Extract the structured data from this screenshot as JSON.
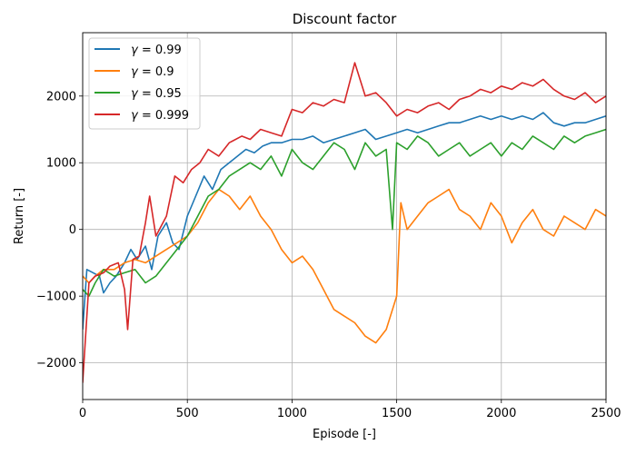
{
  "chart_data": {
    "type": "line",
    "title": "Discount factor",
    "xlabel": "Episode [-]",
    "ylabel": "Return [-]",
    "xlim": [
      0,
      2500
    ],
    "ylim": [
      -2550,
      2950
    ],
    "xticks": [
      0,
      500,
      1000,
      1500,
      2000,
      2500
    ],
    "yticks": [
      -2000,
      -1000,
      0,
      1000,
      2000
    ],
    "xtick_labels": [
      "0",
      "500",
      "1000",
      "1500",
      "2000",
      "2500"
    ],
    "ytick_labels": [
      "−2000",
      "−1000",
      "0",
      "1000",
      "2000"
    ],
    "grid": true,
    "legend_position": "top-left",
    "series": [
      {
        "name": "γ = 0.99",
        "legend_symbol": "γ",
        "legend_value": " = 0.99",
        "color": "#1f77b4",
        "x": [
          0,
          20,
          50,
          80,
          100,
          130,
          160,
          200,
          230,
          260,
          300,
          330,
          360,
          400,
          430,
          460,
          500,
          540,
          580,
          620,
          660,
          700,
          740,
          780,
          820,
          860,
          900,
          950,
          1000,
          1050,
          1100,
          1150,
          1200,
          1250,
          1300,
          1350,
          1400,
          1450,
          1500,
          1550,
          1600,
          1650,
          1700,
          1750,
          1800,
          1850,
          1900,
          1950,
          2000,
          2050,
          2100,
          2150,
          2200,
          2250,
          2300,
          2350,
          2400,
          2450,
          2500
        ],
        "y": [
          -1500,
          -600,
          -650,
          -700,
          -950,
          -800,
          -700,
          -500,
          -300,
          -450,
          -250,
          -600,
          -100,
          100,
          -200,
          -300,
          200,
          500,
          800,
          600,
          900,
          1000,
          1100,
          1200,
          1150,
          1250,
          1300,
          1300,
          1350,
          1350,
          1400,
          1300,
          1350,
          1400,
          1450,
          1500,
          1350,
          1400,
          1450,
          1500,
          1450,
          1500,
          1550,
          1600,
          1600,
          1650,
          1700,
          1650,
          1700,
          1650,
          1700,
          1650,
          1750,
          1600,
          1550,
          1600,
          1600,
          1650,
          1700
        ]
      },
      {
        "name": "γ = 0.9",
        "legend_symbol": "γ",
        "legend_value": " = 0.9",
        "color": "#ff7f0e",
        "x": [
          0,
          30,
          60,
          100,
          150,
          200,
          250,
          300,
          350,
          400,
          450,
          500,
          550,
          600,
          650,
          700,
          750,
          800,
          850,
          900,
          950,
          1000,
          1050,
          1100,
          1150,
          1200,
          1250,
          1300,
          1350,
          1400,
          1450,
          1500,
          1520,
          1550,
          1600,
          1650,
          1700,
          1750,
          1800,
          1850,
          1900,
          1950,
          2000,
          2050,
          2100,
          2150,
          2200,
          2250,
          2300,
          2350,
          2400,
          2450,
          2500
        ],
        "y": [
          -700,
          -800,
          -700,
          -600,
          -600,
          -500,
          -450,
          -500,
          -400,
          -300,
          -200,
          -100,
          100,
          400,
          600,
          500,
          300,
          500,
          200,
          0,
          -300,
          -500,
          -400,
          -600,
          -900,
          -1200,
          -1300,
          -1400,
          -1600,
          -1700,
          -1500,
          -1000,
          400,
          0,
          200,
          400,
          500,
          600,
          300,
          200,
          0,
          400,
          200,
          -200,
          100,
          300,
          0,
          -100,
          200,
          100,
          0,
          300,
          200
        ]
      },
      {
        "name": "γ = 0.95",
        "legend_symbol": "γ",
        "legend_value": " = 0.95",
        "color": "#2ca02c",
        "x": [
          0,
          30,
          60,
          100,
          150,
          200,
          250,
          300,
          350,
          400,
          450,
          500,
          550,
          600,
          650,
          700,
          750,
          800,
          850,
          900,
          950,
          1000,
          1050,
          1100,
          1150,
          1200,
          1250,
          1300,
          1350,
          1400,
          1450,
          1480,
          1500,
          1550,
          1600,
          1650,
          1700,
          1750,
          1800,
          1850,
          1900,
          1950,
          2000,
          2050,
          2100,
          2150,
          2200,
          2250,
          2300,
          2350,
          2400,
          2450,
          2500
        ],
        "y": [
          -900,
          -1000,
          -800,
          -600,
          -700,
          -650,
          -600,
          -800,
          -700,
          -500,
          -300,
          -100,
          200,
          500,
          600,
          800,
          900,
          1000,
          900,
          1100,
          800,
          1200,
          1000,
          900,
          1100,
          1300,
          1200,
          900,
          1300,
          1100,
          1200,
          0,
          1300,
          1200,
          1400,
          1300,
          1100,
          1200,
          1300,
          1100,
          1200,
          1300,
          1100,
          1300,
          1200,
          1400,
          1300,
          1200,
          1400,
          1300,
          1400,
          1450,
          1500
        ]
      },
      {
        "name": "γ = 0.999",
        "legend_symbol": "γ",
        "legend_value": " = 0.999",
        "color": "#d62728",
        "x": [
          0,
          30,
          60,
          100,
          130,
          170,
          200,
          215,
          240,
          270,
          300,
          320,
          350,
          400,
          440,
          480,
          520,
          560,
          600,
          650,
          700,
          760,
          800,
          850,
          900,
          950,
          1000,
          1050,
          1100,
          1150,
          1200,
          1250,
          1300,
          1350,
          1400,
          1450,
          1500,
          1550,
          1600,
          1650,
          1700,
          1750,
          1800,
          1850,
          1900,
          1950,
          2000,
          2050,
          2100,
          2150,
          2200,
          2250,
          2300,
          2350,
          2400,
          2450,
          2500
        ],
        "y": [
          -2300,
          -800,
          -700,
          -650,
          -550,
          -500,
          -900,
          -1500,
          -450,
          -400,
          100,
          500,
          -100,
          200,
          800,
          700,
          900,
          1000,
          1200,
          1100,
          1300,
          1400,
          1350,
          1500,
          1450,
          1400,
          1800,
          1750,
          1900,
          1850,
          1950,
          1900,
          2500,
          2000,
          2050,
          1900,
          1700,
          1800,
          1750,
          1850,
          1900,
          1800,
          1950,
          2000,
          2100,
          2050,
          2150,
          2100,
          2200,
          2150,
          2250,
          2100,
          2000,
          1950,
          2050,
          1900,
          2000
        ]
      }
    ]
  }
}
